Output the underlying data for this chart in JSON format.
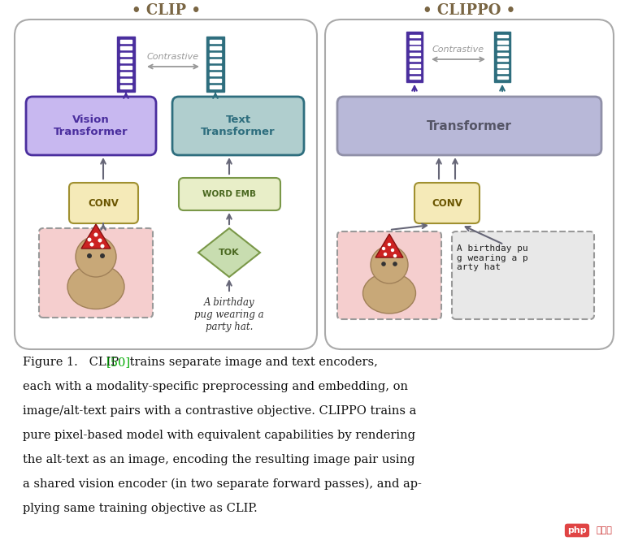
{
  "bg_color": "#ffffff",
  "fig_width": 7.69,
  "fig_height": 6.71,
  "clip_title": "• CLIP •",
  "clippo_title": "• CLIPPO •",
  "vision_transformer_label": "Vision\nTransformer",
  "text_transformer_label": "Text\nTransformer",
  "transformer_label": "Transformer",
  "conv_label": "CONV",
  "word_emb_label": "WORD EMB",
  "tok_label": "TOK",
  "contrastive_label": "Contrastive",
  "birthday_text": "A birthday\npug wearing a\nparty hat.",
  "birthday_rendered": "A birthday pu\ng wearing a p\narty hat",
  "vision_transformer_fill": "#c8b8f0",
  "vision_transformer_edge": "#4a2e9e",
  "text_transformer_fill": "#b0cece",
  "text_transformer_edge": "#2e6e7e",
  "transformer_fill_left": "#b8b8d8",
  "transformer_fill_right": "#b8cce0",
  "transformer_edge": "#9090a8",
  "conv_fill": "#f5eab8",
  "conv_edge": "#a09030",
  "word_emb_fill": "#e8eec8",
  "word_emb_edge": "#7a9848",
  "tok_fill": "#c8ddb0",
  "tok_edge": "#7a9848",
  "film_purple": "#4a2e9e",
  "film_teal": "#2e6e7e",
  "arrow_color": "#666677",
  "contrastive_color": "#999999",
  "image_bg_color": "#f5cece",
  "rendered_text_bg": "#e8e8e8",
  "dashed_border_color": "#999999",
  "outer_box_edge": "#aaaaaa",
  "title_color": "#7a6644",
  "caption_color": "#111111",
  "ref_color": "#00aa00",
  "watermark_bg": "#e04444",
  "watermark_text_color": "#cc3333"
}
